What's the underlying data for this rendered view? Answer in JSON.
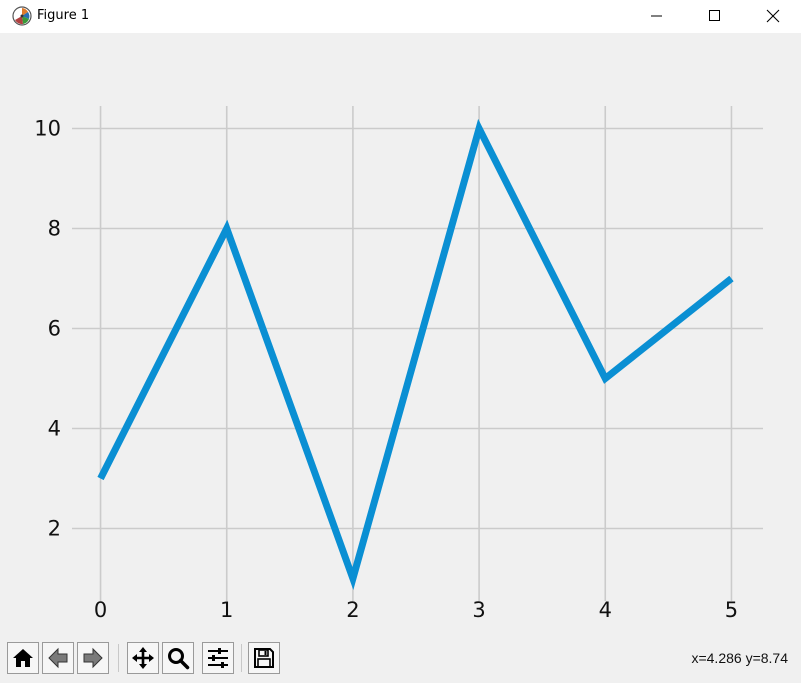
{
  "window": {
    "title": "Figure 1"
  },
  "icons": {
    "app": "matplotlib-logo-icon",
    "minimize": "minimize-icon",
    "maximize": "maximize-icon",
    "close": "close-icon"
  },
  "toolbar": {
    "tools": [
      "home-icon",
      "back-arrow-icon",
      "forward-arrow-icon",
      "pan-move-icon",
      "zoom-magnifier-icon",
      "configure-subplots-icon",
      "save-floppy-icon"
    ],
    "coordinates": "x=4.286 y=8.74"
  },
  "colors": {
    "line": "#0a8fd3",
    "grid": "#cbcbcb",
    "background": "#f0f0f0"
  },
  "chart_data": {
    "type": "line",
    "x": [
      0,
      1,
      2,
      3,
      4,
      5
    ],
    "series": [
      {
        "values": [
          3,
          8,
          1,
          10,
          5,
          7
        ]
      }
    ],
    "xlim": [
      -0.25,
      5.25
    ],
    "ylim": [
      0.55,
      10.45
    ],
    "xticks": [
      "0",
      "1",
      "2",
      "3",
      "4",
      "5"
    ],
    "yticks": [
      "2",
      "4",
      "6",
      "8",
      "10"
    ],
    "grid": true,
    "title": "",
    "xlabel": "",
    "ylabel": ""
  }
}
